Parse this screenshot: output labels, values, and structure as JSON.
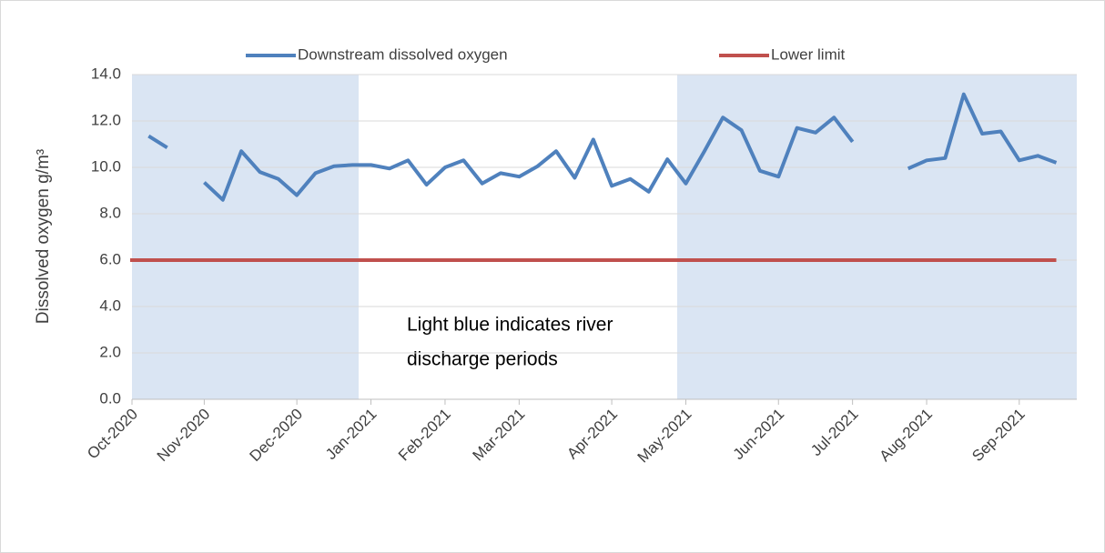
{
  "chart_data": {
    "type": "line",
    "y_label": "Dissolved oxygen g/m³",
    "annotation": [
      "Light blue indicates  river",
      "discharge periods"
    ],
    "categories": [
      "Oct-2020",
      null,
      null,
      null,
      "Nov-2020",
      null,
      null,
      null,
      null,
      "Dec-2020",
      null,
      null,
      null,
      "Jan-2021",
      null,
      null,
      null,
      "Feb-2021",
      null,
      null,
      null,
      "Mar-2021",
      null,
      null,
      null,
      null,
      "Apr-2021",
      null,
      null,
      null,
      "May-2021",
      null,
      null,
      null,
      null,
      "Jun-2021",
      null,
      null,
      null,
      "Jul-2021",
      null,
      null,
      null,
      "Aug-2021",
      null,
      null,
      null,
      null,
      "Sep-2021",
      null,
      null
    ],
    "series": [
      {
        "name": "Downstream  dissolved oxygen",
        "color": "#4f81bd",
        "values": [
          null,
          11.35,
          10.85,
          null,
          9.35,
          8.6,
          10.7,
          9.8,
          9.5,
          8.8,
          9.75,
          10.05,
          10.1,
          10.1,
          9.95,
          10.3,
          9.25,
          10.0,
          10.3,
          9.3,
          9.75,
          9.6,
          10.05,
          10.7,
          9.55,
          11.2,
          9.2,
          9.5,
          8.95,
          10.35,
          9.3,
          10.7,
          12.15,
          11.6,
          9.85,
          9.6,
          11.7,
          11.5,
          12.15,
          11.1,
          null,
          null,
          9.95,
          10.3,
          10.4,
          13.15,
          11.45,
          11.55,
          10.3,
          10.5,
          10.2
        ]
      },
      {
        "name": "Lower limit",
        "color": "#c0504d",
        "values": [
          6,
          6,
          6,
          6,
          6,
          6,
          6,
          6,
          6,
          6,
          6,
          6,
          6,
          6,
          6,
          6,
          6,
          6,
          6,
          6,
          6,
          6,
          6,
          6,
          6,
          6,
          6,
          6,
          6,
          6,
          6,
          6,
          6,
          6,
          6,
          6,
          6,
          6,
          6,
          6,
          6,
          6,
          6,
          6,
          6,
          6,
          6,
          6,
          6,
          6,
          6
        ]
      }
    ],
    "ylim": [
      0,
      14
    ],
    "yticks": [
      {
        "value": 0,
        "label": "0.0"
      },
      {
        "value": 2,
        "label": "2.0"
      },
      {
        "value": 4,
        "label": "4.0"
      },
      {
        "value": 6,
        "label": "6.0"
      },
      {
        "value": 8,
        "label": "8.0"
      },
      {
        "value": 10,
        "label": "10.0"
      },
      {
        "value": 12,
        "label": "12.0"
      },
      {
        "value": 14,
        "label": "14.0"
      }
    ],
    "grid": true,
    "legend": "top"
  }
}
